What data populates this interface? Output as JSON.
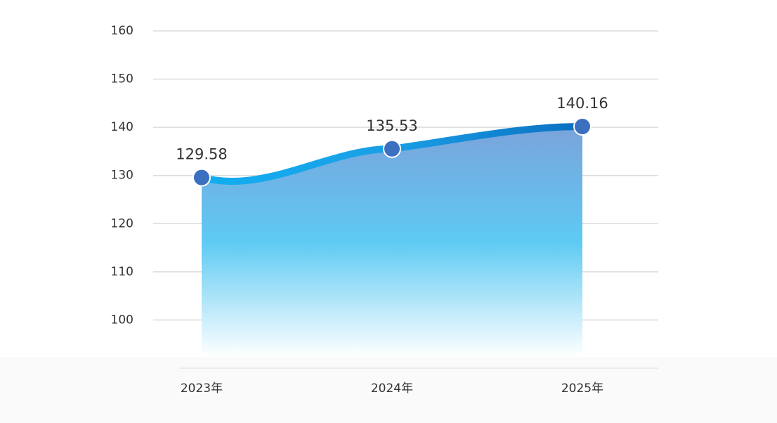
{
  "chart_data": {
    "type": "line",
    "categories": [
      "2023年",
      "2024年",
      "2025年"
    ],
    "values": [
      129.58,
      135.53,
      140.16
    ],
    "color": "#1a9fe6",
    "area": true,
    "ylim": [
      90,
      160
    ],
    "yticks": [
      100,
      110,
      120,
      130,
      140,
      150,
      160
    ],
    "grid": true
  }
}
